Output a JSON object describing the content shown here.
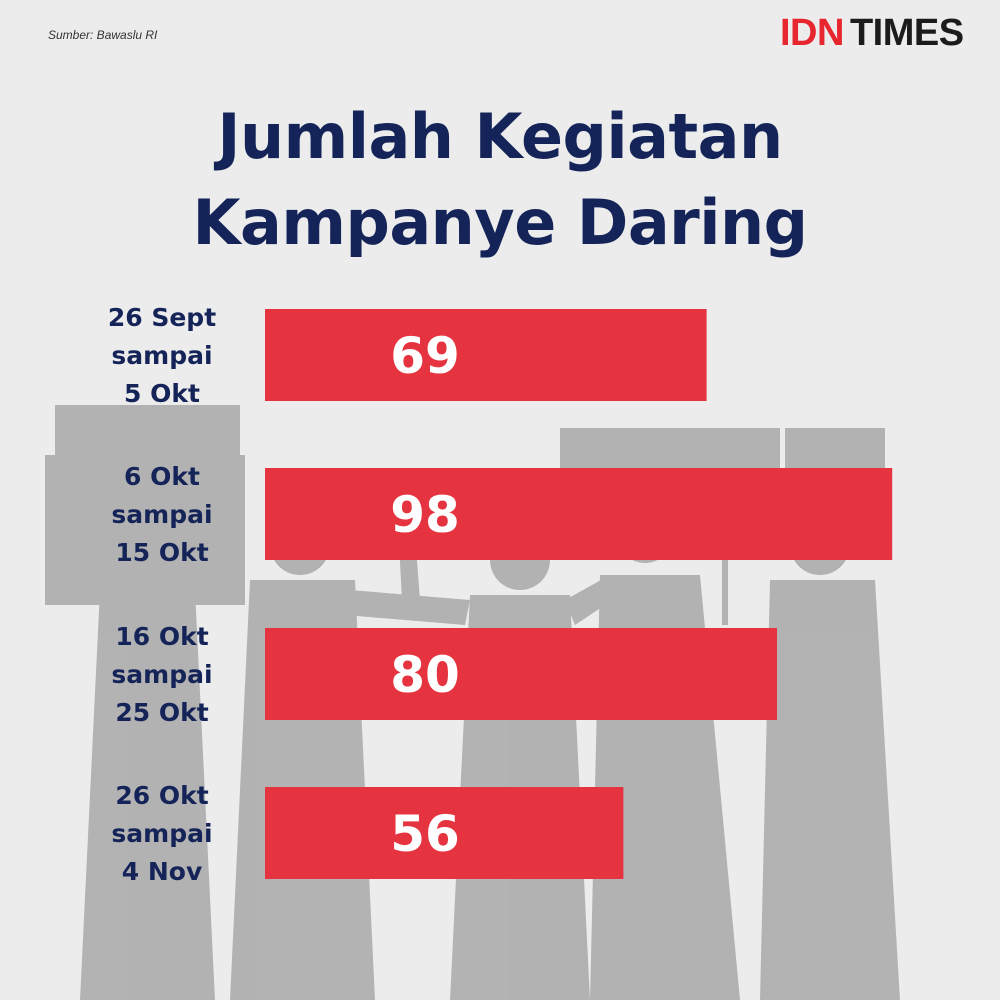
{
  "header": {
    "source": "Sumber: Bawaslu RI",
    "logo_idn": "IDN",
    "logo_times": "TIMES",
    "title_line1": "Jumlah Kegiatan",
    "title_line2": "Kampanye Daring"
  },
  "colors": {
    "bar": "#e5343f",
    "title": "#152458",
    "logo_red": "#e8262f"
  },
  "chart_data": {
    "type": "bar",
    "orientation": "horizontal",
    "title": "Jumlah Kegiatan Kampanye Daring",
    "categories": [
      [
        "26 Sept",
        "sampai",
        "5 Okt"
      ],
      [
        "6 Okt",
        "sampai",
        "15 Okt"
      ],
      [
        "16 Okt",
        "sampai",
        "25 Okt"
      ],
      [
        "26 Okt",
        "sampai",
        "4 Nov"
      ]
    ],
    "values": [
      69,
      98,
      80,
      56
    ],
    "data_labels": [
      "69",
      "98",
      "80",
      "56"
    ],
    "xlim": [
      0,
      100
    ],
    "grid": false
  }
}
